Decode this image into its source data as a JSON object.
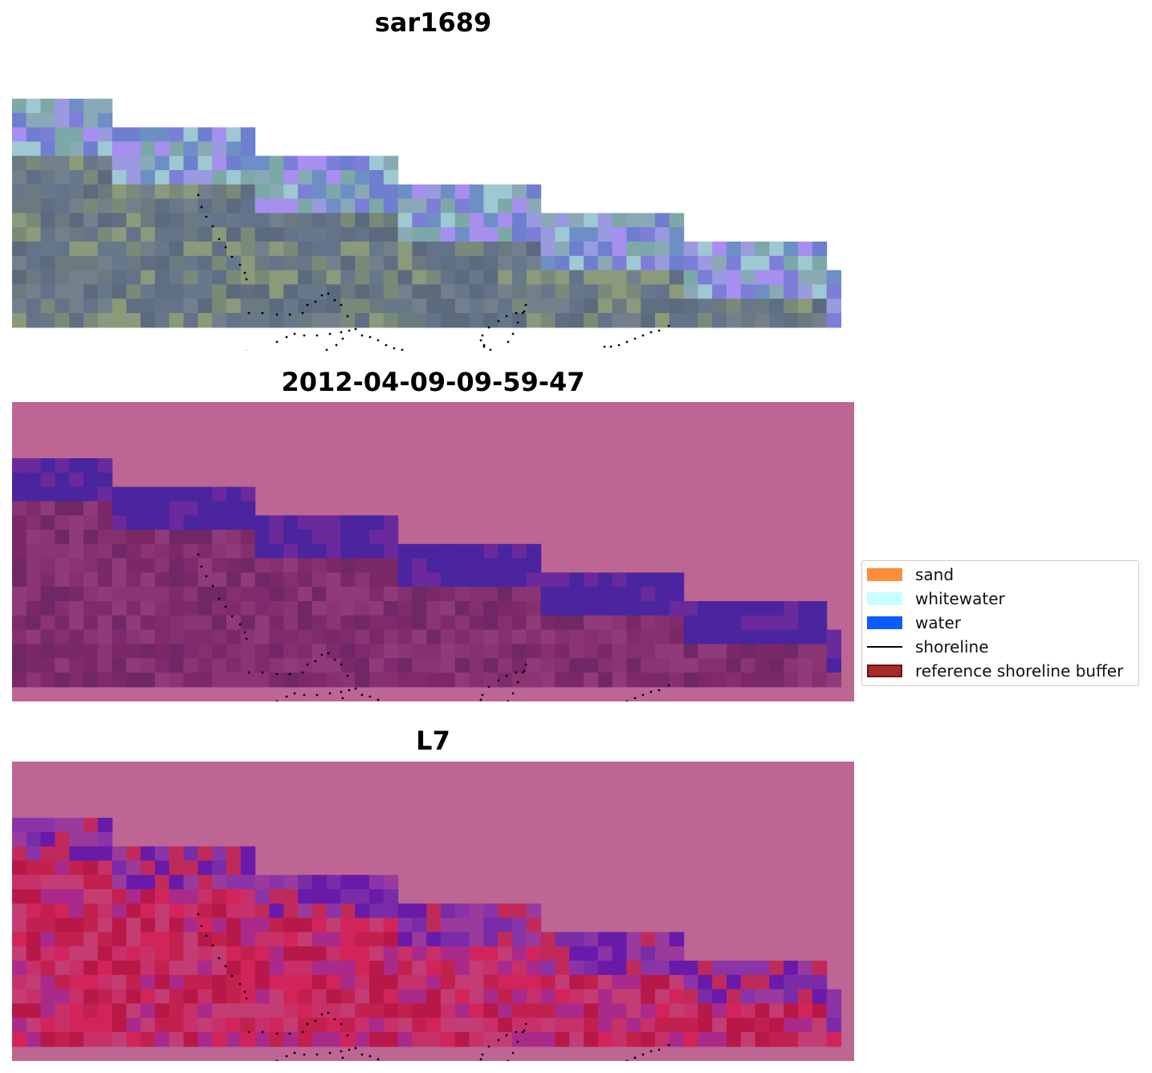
{
  "chart_data": [
    {
      "type": "heatmap",
      "title": "sar1689",
      "description_layer": "RGB satellite image with detected shoreline points",
      "grid_on": false
    },
    {
      "type": "heatmap",
      "title": "2012-04-09-09-59-47",
      "grid_on": false
    },
    {
      "type": "heatmap",
      "title": "L7",
      "grid_on": false
    }
  ],
  "legend": {
    "placement": "right",
    "items": [
      {
        "label": "sand",
        "color": "#ff8c3a",
        "kind": "patch"
      },
      {
        "label": "whitewater",
        "color": "#c8ffff",
        "kind": "patch"
      },
      {
        "label": "water",
        "color": "#0a5cff",
        "kind": "patch"
      },
      {
        "label": "shoreline",
        "color": "#000000",
        "kind": "line"
      },
      {
        "label": "reference shoreline buffer",
        "color": "#a52a2a",
        "kind": "patch",
        "edge": "#7a1010"
      }
    ]
  },
  "colors": {
    "buffer_overlay": "#bd6593",
    "water_class": "#4a23a0",
    "sea_ndwi": "#5a2ab0"
  }
}
